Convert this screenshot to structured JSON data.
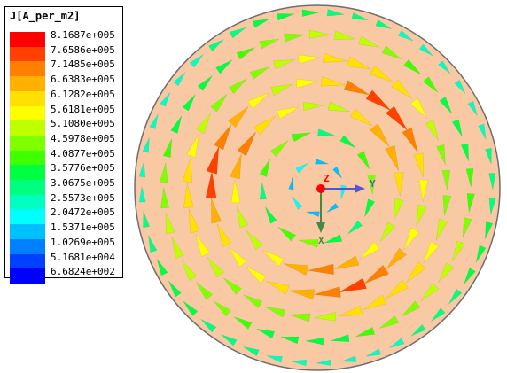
{
  "legend": {
    "title": "J[A_per_m2]",
    "entries": [
      {
        "label": "8.1687e+005",
        "color": "#ff0000"
      },
      {
        "label": "7.6586e+005",
        "color": "#ff4000"
      },
      {
        "label": "7.1485e+005",
        "color": "#ff8000"
      },
      {
        "label": "6.6383e+005",
        "color": "#ffb000"
      },
      {
        "label": "6.1282e+005",
        "color": "#ffe000"
      },
      {
        "label": "5.6181e+005",
        "color": "#ffff00"
      },
      {
        "label": "5.1080e+005",
        "color": "#c0ff00"
      },
      {
        "label": "4.5978e+005",
        "color": "#80ff00"
      },
      {
        "label": "4.0877e+005",
        "color": "#40ff00"
      },
      {
        "label": "3.5776e+005",
        "color": "#00ff40"
      },
      {
        "label": "3.0675e+005",
        "color": "#00ff80"
      },
      {
        "label": "2.5573e+005",
        "color": "#00ffc0"
      },
      {
        "label": "2.0472e+005",
        "color": "#00ffff"
      },
      {
        "label": "1.5371e+005",
        "color": "#00c0ff"
      },
      {
        "label": "1.0269e+005",
        "color": "#0080ff"
      },
      {
        "label": "5.1681e+004",
        "color": "#0040ff"
      },
      {
        "label": "6.6824e+002",
        "color": "#0000ff"
      }
    ]
  },
  "disk": {
    "fill": "#f9c9a3",
    "edge": "#6e6e6e"
  },
  "axes": {
    "y_label": "Y",
    "x_label": "X",
    "z_label": "Z",
    "y_color": "#5555cc",
    "x_color": "#448844",
    "z_color": "#ff0000"
  },
  "field_rings": [
    {
      "ratio": 0.14,
      "count": 8,
      "level": 0.25
    },
    {
      "ratio": 0.3,
      "count": 14,
      "level": 0.55
    },
    {
      "ratio": 0.45,
      "count": 20,
      "level": 0.85
    },
    {
      "ratio": 0.58,
      "count": 26,
      "level": 0.93
    },
    {
      "ratio": 0.71,
      "count": 32,
      "level": 0.78
    },
    {
      "ratio": 0.84,
      "count": 38,
      "level": 0.62
    },
    {
      "ratio": 0.96,
      "count": 44,
      "level": 0.42
    }
  ]
}
